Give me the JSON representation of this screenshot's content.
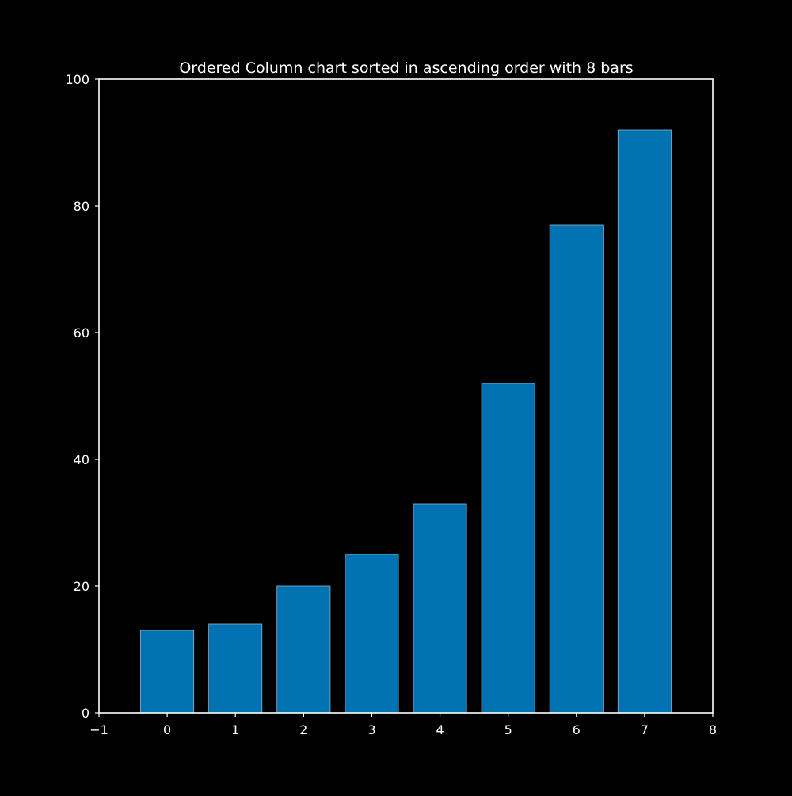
{
  "chart_data": {
    "type": "bar",
    "title": "Ordered Column chart sorted in ascending order with 8 bars",
    "xlabel": "",
    "ylabel": "",
    "x": [
      0,
      1,
      2,
      3,
      4,
      5,
      6,
      7
    ],
    "values": [
      13,
      14,
      20,
      25,
      33,
      52,
      77,
      92
    ],
    "xlim": [
      -1,
      8
    ],
    "ylim": [
      0,
      100
    ],
    "xticks": [
      "−1",
      "0",
      "1",
      "2",
      "3",
      "4",
      "5",
      "6",
      "7",
      "8"
    ],
    "xtick_values": [
      -1,
      0,
      1,
      2,
      3,
      4,
      5,
      6,
      7,
      8
    ],
    "yticks": [
      "0",
      "20",
      "40",
      "60",
      "80",
      "100"
    ],
    "ytick_values": [
      0,
      20,
      40,
      60,
      80,
      100
    ],
    "grid": false,
    "colors": {
      "background": "#000000",
      "bar_fill": "#0072b2",
      "bar_edge": "#8fb8d6",
      "axis": "#ffffff",
      "text": "#ffffff"
    }
  }
}
